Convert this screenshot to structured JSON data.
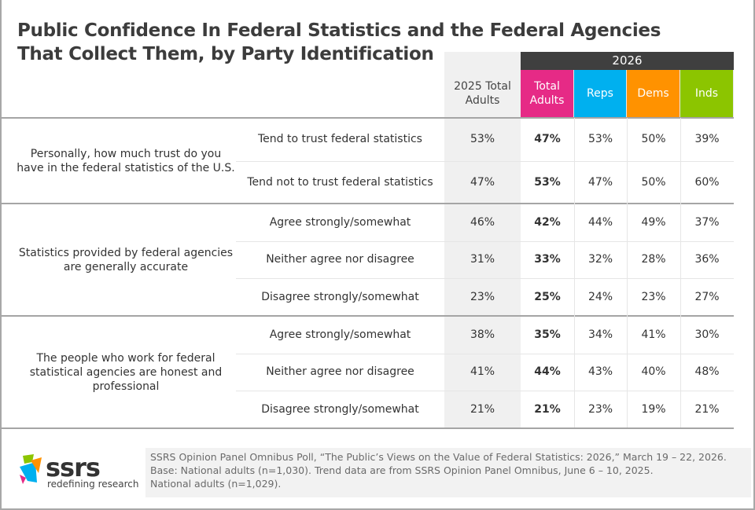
{
  "title": [
    "Public Confidence In Federal Statistics and the Federal Agencies",
    "That Collect Them, by Party Identification"
  ],
  "year_header": "2026",
  "col_2025": "2025 Total Adults",
  "columns": [
    {
      "label": "Total Adults",
      "color": "#e62a86"
    },
    {
      "label": "Reps",
      "color": "#00b0ef"
    },
    {
      "label": "Dems",
      "color": "#ff9200"
    },
    {
      "label": "Inds",
      "color": "#8cc500"
    }
  ],
  "groups": [
    {
      "question": "Personally, how much trust do you have in the federal statistics of the U.S.",
      "rows": [
        {
          "answer": "Tend to trust federal statistics",
          "values": [
            "53%",
            "47%",
            "53%",
            "50%",
            "39%"
          ]
        },
        {
          "answer": "Tend not to trust federal statistics",
          "values": [
            "47%",
            "53%",
            "47%",
            "50%",
            "60%"
          ]
        }
      ]
    },
    {
      "question": "Statistics provided by federal agencies are generally accurate",
      "rows": [
        {
          "answer": "Agree strongly/somewhat",
          "values": [
            "46%",
            "42%",
            "44%",
            "49%",
            "37%"
          ]
        },
        {
          "answer": "Neither agree nor disagree",
          "values": [
            "31%",
            "33%",
            "32%",
            "28%",
            "36%"
          ]
        },
        {
          "answer": "Disagree strongly/somewhat",
          "values": [
            "23%",
            "25%",
            "24%",
            "23%",
            "27%"
          ]
        }
      ]
    },
    {
      "question": "The people who work for federal statistical agencies are honest and professional",
      "rows": [
        {
          "answer": "Agree strongly/somewhat",
          "values": [
            "38%",
            "35%",
            "34%",
            "41%",
            "30%"
          ]
        },
        {
          "answer": "Neither agree nor disagree",
          "values": [
            "41%",
            "44%",
            "43%",
            "40%",
            "48%"
          ]
        },
        {
          "answer": "Disagree strongly/somewhat",
          "values": [
            "21%",
            "21%",
            "23%",
            "19%",
            "21%"
          ]
        }
      ]
    }
  ],
  "footer": [
    "SSRS Opinion Panel Omnibus Poll, “The Public’s Views on the Value of Federal Statistics: 2026,” March 19 – 22, 2026.",
    "Base: National adults (n=1,030). Trend data are from SSRS Opinion Panel Omnibus, June 6 – 10, 2025.",
    "National adults (n=1,029)."
  ],
  "logo": {
    "name": "ssrs",
    "tagline": "redefining research"
  }
}
